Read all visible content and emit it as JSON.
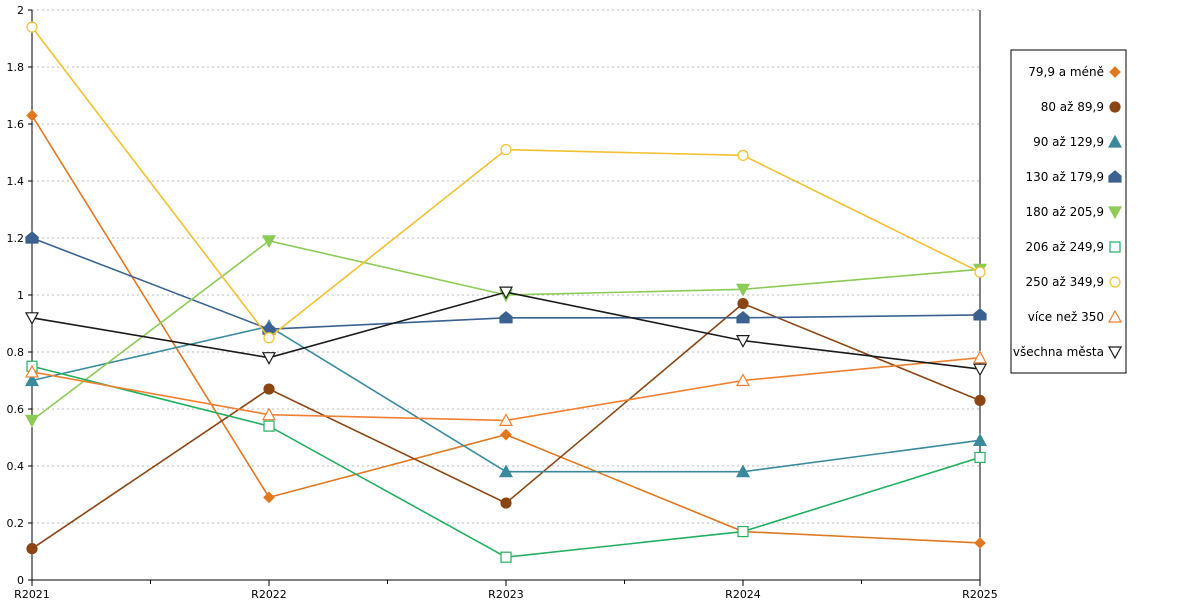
{
  "chart_data": {
    "type": "line",
    "title": "",
    "xlabel": "",
    "ylabel": "",
    "categories": [
      "R2021",
      "R2022",
      "R2023",
      "R2024",
      "R2025"
    ],
    "ylim": [
      0,
      2
    ],
    "yticks": [
      "0",
      "0.2",
      "0.4",
      "0.6",
      "0.8",
      "1",
      "1.2",
      "1.4",
      "1.6",
      "1.8",
      "2"
    ],
    "grid": "horizontal-dotted",
    "legend_placement": "right",
    "series": [
      {
        "name": "79,9 a méně",
        "color": "#E07820",
        "marker": "diamond",
        "filled": true,
        "values": [
          1.63,
          0.29,
          0.51,
          0.17,
          0.13
        ]
      },
      {
        "name": "80 až 89,9",
        "color": "#8B4513",
        "marker": "circle",
        "filled": true,
        "values": [
          0.11,
          0.67,
          0.27,
          0.97,
          0.63
        ]
      },
      {
        "name": "90 až 129,9",
        "color": "#3A8A9E",
        "marker": "triangle-up",
        "filled": true,
        "values": [
          0.7,
          0.89,
          0.38,
          0.38,
          0.49
        ]
      },
      {
        "name": "130 až 179,9",
        "color": "#3A6190",
        "marker": "house",
        "filled": true,
        "values": [
          1.2,
          0.88,
          0.92,
          0.92,
          0.93
        ]
      },
      {
        "name": "180 až 205,9",
        "color": "#8CCB55",
        "marker": "triangle-down",
        "filled": true,
        "values": [
          0.56,
          1.19,
          1.0,
          1.02,
          1.09
        ]
      },
      {
        "name": "206 až 249,9",
        "color": "#22B060",
        "marker": "square",
        "filled": false,
        "values": [
          0.75,
          0.54,
          0.08,
          0.17,
          0.43
        ]
      },
      {
        "name": "250 až 349,9",
        "color": "#F2C030",
        "marker": "circle",
        "filled": false,
        "values": [
          1.94,
          0.85,
          1.51,
          1.49,
          1.08
        ]
      },
      {
        "name": "více než 350",
        "color": "#F08030",
        "marker": "triangle-up",
        "filled": false,
        "values": [
          0.73,
          0.58,
          0.56,
          0.7,
          0.78
        ]
      },
      {
        "name": "všechna města",
        "color": "#1A1A1A",
        "marker": "triangle-down",
        "filled": false,
        "values": [
          0.92,
          0.78,
          1.01,
          0.84,
          0.74
        ]
      }
    ]
  }
}
